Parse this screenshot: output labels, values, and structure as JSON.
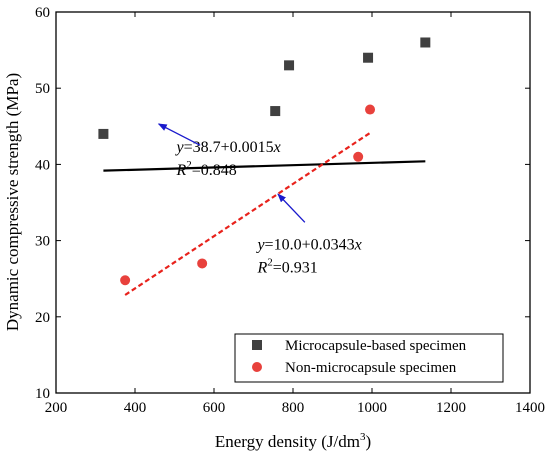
{
  "chart_data": {
    "type": "scatter",
    "xlabel": "Energy density (J/dm",
    "xlabel_sup": "3",
    "xlabel_end": ")",
    "ylabel": "Dynamic compressive strength (MPa)",
    "xlim": [
      200,
      1400
    ],
    "ylim": [
      10,
      60
    ],
    "xticks": [
      200,
      400,
      600,
      800,
      1000,
      1200,
      1400
    ],
    "yticks": [
      10,
      20,
      30,
      40,
      50,
      60
    ],
    "grid": false,
    "legend_position": "bottom-right",
    "series": [
      {
        "name": "Microcapsule-based specimen",
        "marker": "square",
        "color": "#404040",
        "x": [
          320,
          755,
          790,
          990,
          1135
        ],
        "y": [
          44,
          47,
          53,
          54,
          56
        ]
      },
      {
        "name": "Non-microcapsule specimen",
        "marker": "circle",
        "color": "#e8413c",
        "x": [
          375,
          570,
          965,
          995
        ],
        "y": [
          24.8,
          27,
          41,
          47.2
        ]
      }
    ],
    "fits": [
      {
        "series": "Microcapsule-based specimen",
        "intercept": 38.7,
        "slope": 0.0015,
        "x_range": [
          320,
          1135
        ],
        "line_style": "solid",
        "color": "#000000",
        "equation_prefix": "y",
        "equation_value": "=38.7+0.0015",
        "equation_var": "x",
        "r2_prefix": "R",
        "r2_sup": "2",
        "r2_value": "=0.848"
      },
      {
        "series": "Non-microcapsule specimen",
        "intercept": 10.0,
        "slope": 0.0343,
        "x_range": [
          375,
          995
        ],
        "line_style": "dashed",
        "color": "#e8221c",
        "equation_prefix": "y",
        "equation_value": "=10.0+0.0343",
        "equation_var": "x",
        "r2_prefix": "R",
        "r2_sup": "2",
        "r2_value": "=0.931"
      }
    ],
    "arrow_color": "#1a1acc"
  }
}
